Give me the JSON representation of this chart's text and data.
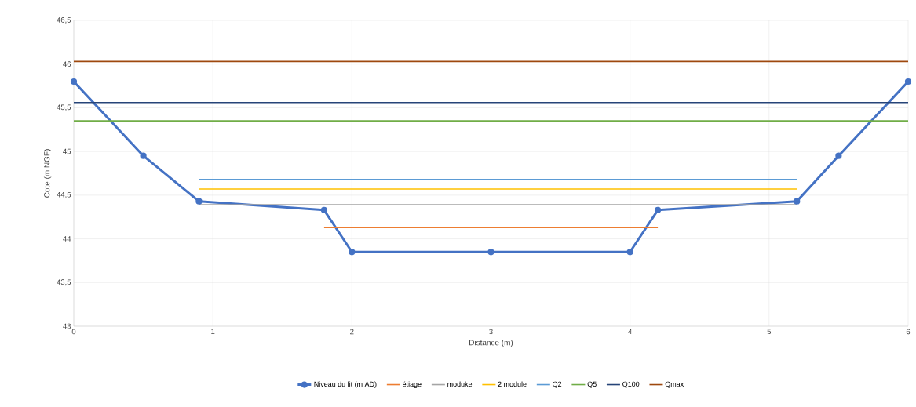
{
  "chart_data": {
    "type": "line",
    "xlabel": "Distance (m)",
    "ylabel": "Cote (m NGF)",
    "xlim": [
      0,
      6
    ],
    "xticks": [
      0,
      1,
      2,
      3,
      4,
      5,
      6
    ],
    "ylim": [
      43,
      46.5
    ],
    "yticks": [
      43,
      {
        "value": 43.5,
        "label": "43,5"
      },
      44,
      {
        "value": 44.5,
        "label": "44,5"
      },
      45,
      {
        "value": 45.5,
        "label": "45,5"
      },
      46,
      {
        "value": 46.5,
        "label": "46,5"
      }
    ],
    "grid": true,
    "legend": "bottom",
    "series": [
      {
        "name": "Niveau du lit (m AD)",
        "color": "#4472c4",
        "marker": "circle",
        "x": [
          0,
          0.5,
          0.9,
          1.8,
          2,
          3,
          4,
          4.2,
          5.2,
          5.5,
          6
        ],
        "values": [
          45.8,
          44.95,
          44.43,
          44.33,
          43.85,
          43.85,
          43.85,
          44.33,
          44.43,
          44.95,
          45.8
        ]
      },
      {
        "name": "étiage",
        "color": "#ed7d31",
        "x": [
          1.8,
          4.2
        ],
        "values": [
          44.13,
          44.13
        ]
      },
      {
        "name": "moduke",
        "color": "#a5a5a5",
        "x": [
          0.9,
          5.2
        ],
        "values": [
          44.39,
          44.39
        ]
      },
      {
        "name": "2 module",
        "color": "#ffc000",
        "x": [
          0.9,
          5.2
        ],
        "values": [
          44.57,
          44.57
        ]
      },
      {
        "name": "Q2",
        "color": "#5b9bd5",
        "x": [
          0.9,
          5.2
        ],
        "values": [
          44.68,
          44.68
        ]
      },
      {
        "name": "Q5",
        "color": "#70ad47",
        "x": [
          0,
          6
        ],
        "values": [
          45.35,
          45.35
        ]
      },
      {
        "name": "Q100",
        "color": "#264478",
        "x": [
          0,
          6
        ],
        "values": [
          45.56,
          45.56
        ]
      },
      {
        "name": "Qmax",
        "color": "#9e480e",
        "x": [
          0,
          6
        ],
        "values": [
          46.03,
          46.03
        ]
      }
    ]
  }
}
